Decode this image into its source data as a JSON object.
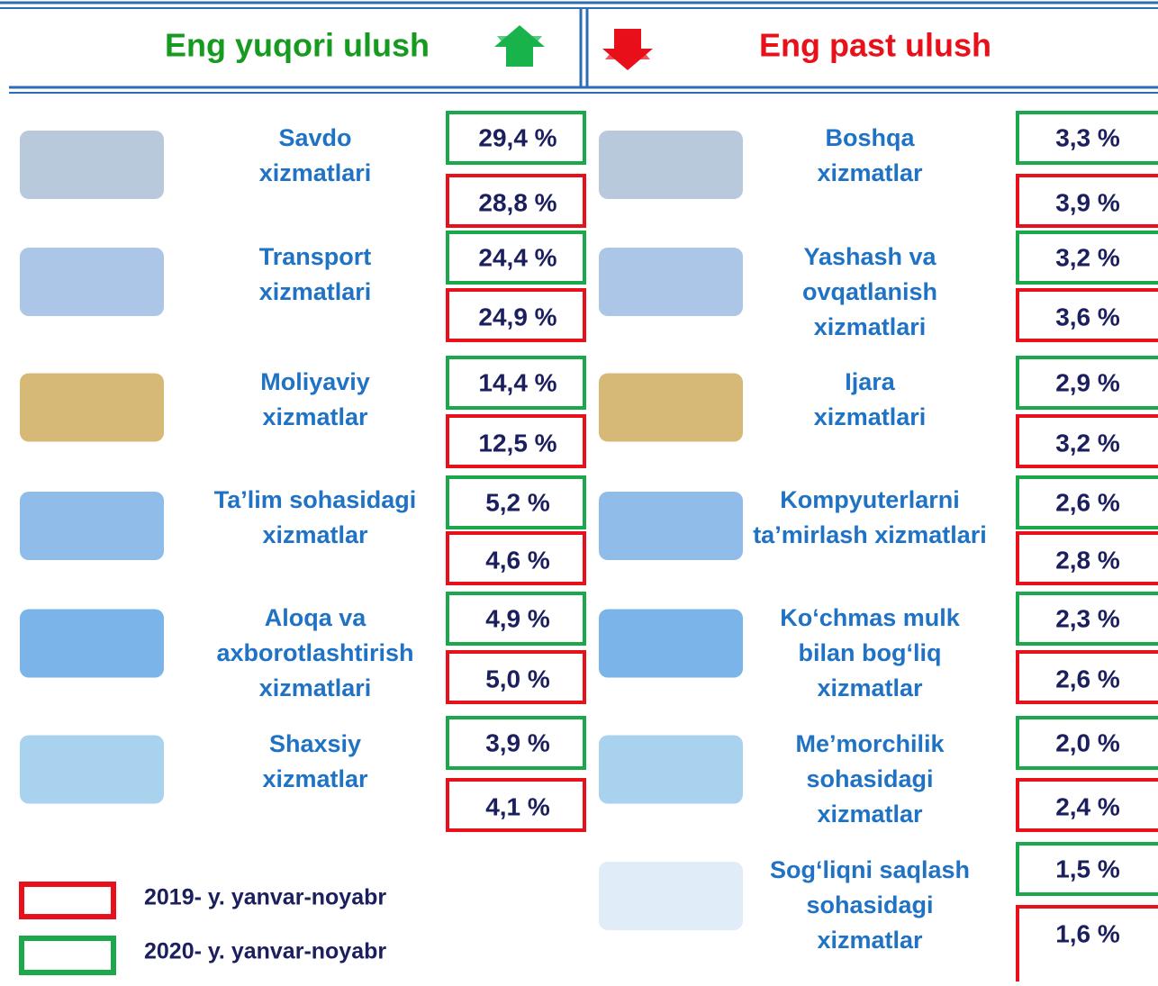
{
  "header": {
    "left_title": "Eng yuqori ulush",
    "right_title": "Eng past ulush"
  },
  "left": [
    {
      "name": [
        "Savdo",
        "xizmatlari"
      ],
      "v2020": "29,4 %",
      "v2019": "28,8 %"
    },
    {
      "name": [
        "Transport",
        "xizmatlari"
      ],
      "v2020": "24,4 %",
      "v2019": "24,9 %"
    },
    {
      "name": [
        "Moliyaviy",
        "xizmatlar"
      ],
      "v2020": "14,4 %",
      "v2019": "12,5 %"
    },
    {
      "name": [
        "Ta’lim sohasidagi",
        "xizmatlar"
      ],
      "v2020": "5,2 %",
      "v2019": "4,6 %"
    },
    {
      "name": [
        "Aloqa va",
        "axborotlashtirish",
        "xizmatlari"
      ],
      "v2020": "4,9 %",
      "v2019": "5,0 %"
    },
    {
      "name": [
        "Shaxsiy",
        "xizmatlar"
      ],
      "v2020": "3,9 %",
      "v2019": "4,1 %"
    }
  ],
  "right": [
    {
      "name": [
        "Boshqa",
        "xizmatlar"
      ],
      "v2020": "3,3 %",
      "v2019": "3,9 %"
    },
    {
      "name": [
        "Yashash va",
        "ovqatlanish",
        "xizmatlari"
      ],
      "v2020": "3,2 %",
      "v2019": "3,6 %"
    },
    {
      "name": [
        "Ijara",
        "xizmatlari"
      ],
      "v2020": "2,9 %",
      "v2019": "3,2 %"
    },
    {
      "name": [
        "Kompyuterlarni",
        "ta’mirlash xizmatlari"
      ],
      "v2020": "2,6 %",
      "v2019": "2,8 %"
    },
    {
      "name": [
        "Ko‘chmas mulk",
        "bilan bog‘liq",
        "xizmatlar"
      ],
      "v2020": "2,3 %",
      "v2019": "2,6 %"
    },
    {
      "name": [
        "Me’morchilik",
        "sohasidagi",
        "xizmatlar"
      ],
      "v2020": "2,0 %",
      "v2019": "2,4 %"
    },
    {
      "name": [
        "Sog‘liqni saqlash",
        "sohasidagi",
        "xizmatlar"
      ],
      "v2020": "1,5 %",
      "v2019": "1,6 %"
    }
  ],
  "legend": {
    "red": "2019- y. yanvar-noyabr",
    "green": "2020- y. yanvar-noyabr"
  }
}
